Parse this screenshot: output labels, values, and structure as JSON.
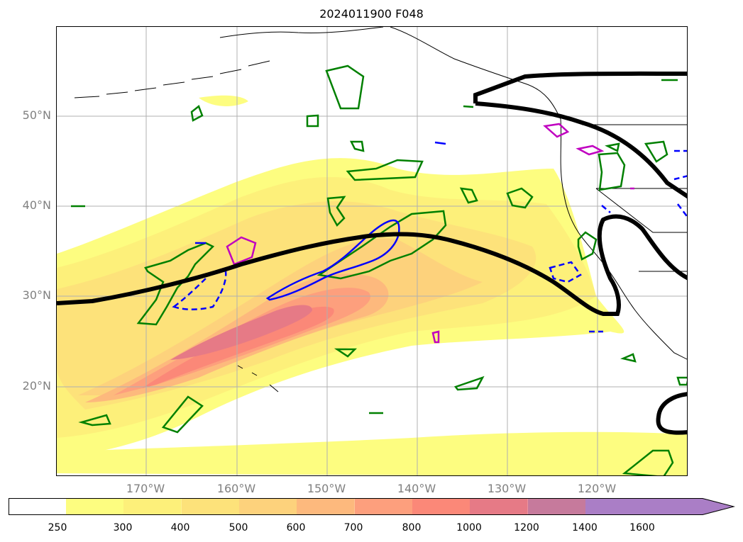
{
  "title": "2024011900 F048",
  "lat_labels": [
    "50°N",
    "40°N",
    "30°N",
    "20°N"
  ],
  "lon_labels": [
    "170°W",
    "160°W",
    "150°W",
    "140°W",
    "130°W",
    "120°W"
  ],
  "colorbar": {
    "ticks": [
      "250",
      "300",
      "400",
      "500",
      "600",
      "700",
      "800",
      "1000",
      "1200",
      "1400",
      "1600"
    ],
    "colors": [
      "#ffffff",
      "#fdfd80",
      "#fdf07a",
      "#fde27a",
      "#fdd27c",
      "#fdb97d",
      "#fd9f7d",
      "#fb8878",
      "#e67a86",
      "#c67a9c",
      "#aa7ec6"
    ]
  },
  "contour_colors": {
    "jet_axis": "#000000",
    "green_contour": "#008000",
    "blue_contour": "#0000ff",
    "magenta_contour": "#c000c0"
  }
}
